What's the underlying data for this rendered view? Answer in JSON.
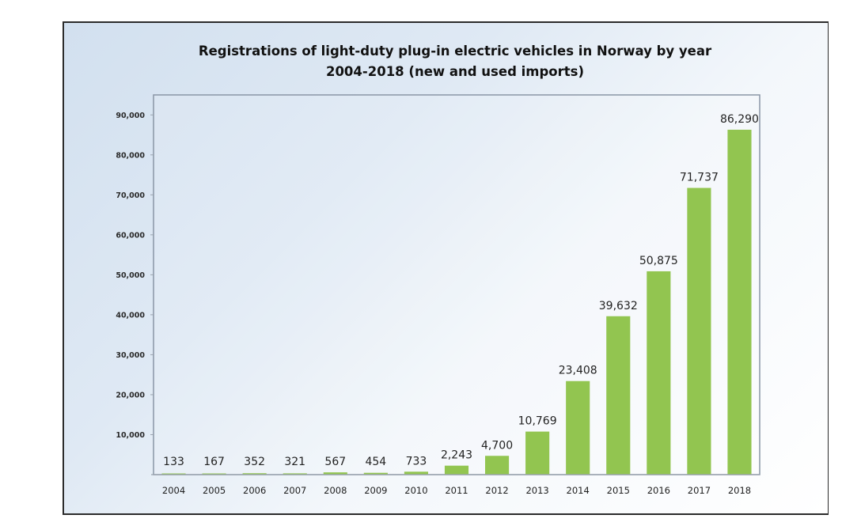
{
  "chart_data": {
    "type": "bar",
    "title": "Registrations of light-duty plug-in electric vehicles in Norway by year",
    "subtitle": "2004-2018 (new and used imports)",
    "xlabel": "",
    "ylabel": "",
    "categories": [
      "2004",
      "2005",
      "2006",
      "2007",
      "2008",
      "2009",
      "2010",
      "2011",
      "2012",
      "2013",
      "2014",
      "2015",
      "2016",
      "2017",
      "2018"
    ],
    "values": [
      133,
      167,
      352,
      321,
      567,
      454,
      733,
      2243,
      4700,
      10769,
      23408,
      39632,
      50875,
      71737,
      86290
    ],
    "data_labels": [
      "133",
      "167",
      "352",
      "321",
      "567",
      "454",
      "733",
      "2,243",
      "4,700",
      "10,769",
      "23,408",
      "39,632",
      "50,875",
      "71,737",
      "86,290"
    ],
    "ylim": [
      0,
      95000
    ],
    "yticks": [
      10000,
      20000,
      30000,
      40000,
      50000,
      60000,
      70000,
      80000,
      90000
    ],
    "ytick_labels": [
      "10,000",
      "20,000",
      "30,000",
      "40,000",
      "50,000",
      "60,000",
      "70,000",
      "80,000",
      "90,000"
    ],
    "grid": false,
    "legend": "none",
    "colors": {
      "bar": "#92c550",
      "plot_border": "#8a96a6",
      "frame_border": "#2b2b2b"
    }
  }
}
